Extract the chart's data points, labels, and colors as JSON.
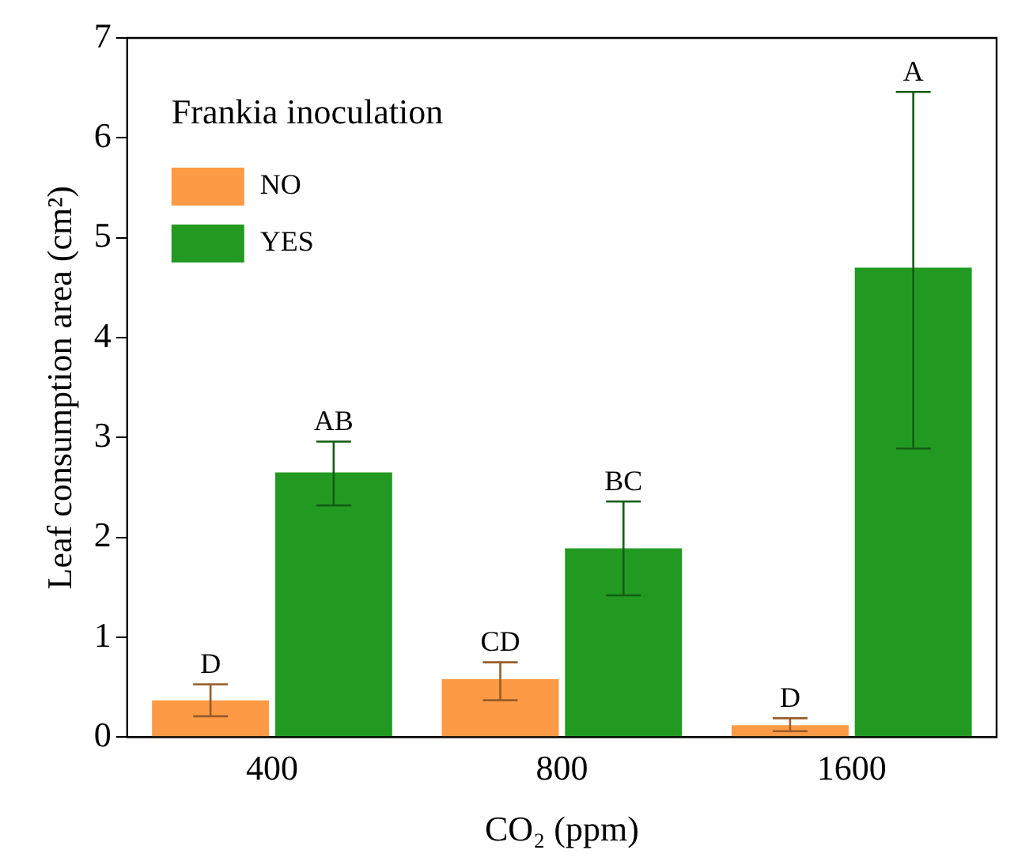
{
  "chart_data": {
    "type": "bar",
    "xlabel": "CO₂ (ppm)",
    "ylabel": "Leaf consumption area (cm²)",
    "legend_title": "Frankia inoculation",
    "categories": [
      "400",
      "800",
      "1600"
    ],
    "series": [
      {
        "name": "NO",
        "color": "#fd9a45",
        "values": [
          0.37,
          0.58,
          0.12
        ],
        "errors": [
          [
            0.21,
            0.53
          ],
          [
            0.37,
            0.75
          ],
          [
            0.06,
            0.19
          ]
        ]
      },
      {
        "name": "YES",
        "color": "#229a22",
        "values": [
          2.65,
          1.89,
          4.7
        ],
        "errors": [
          [
            2.32,
            2.96
          ],
          [
            1.42,
            2.36
          ],
          [
            2.89,
            6.46
          ]
        ]
      }
    ],
    "ylim": [
      0,
      7
    ],
    "yticks": [
      0,
      1,
      2,
      3,
      4,
      5,
      6,
      7
    ],
    "grid": false,
    "legend": "top left",
    "annotations": [
      "D",
      "AB",
      "CD",
      "BC",
      "D",
      "A"
    ]
  }
}
